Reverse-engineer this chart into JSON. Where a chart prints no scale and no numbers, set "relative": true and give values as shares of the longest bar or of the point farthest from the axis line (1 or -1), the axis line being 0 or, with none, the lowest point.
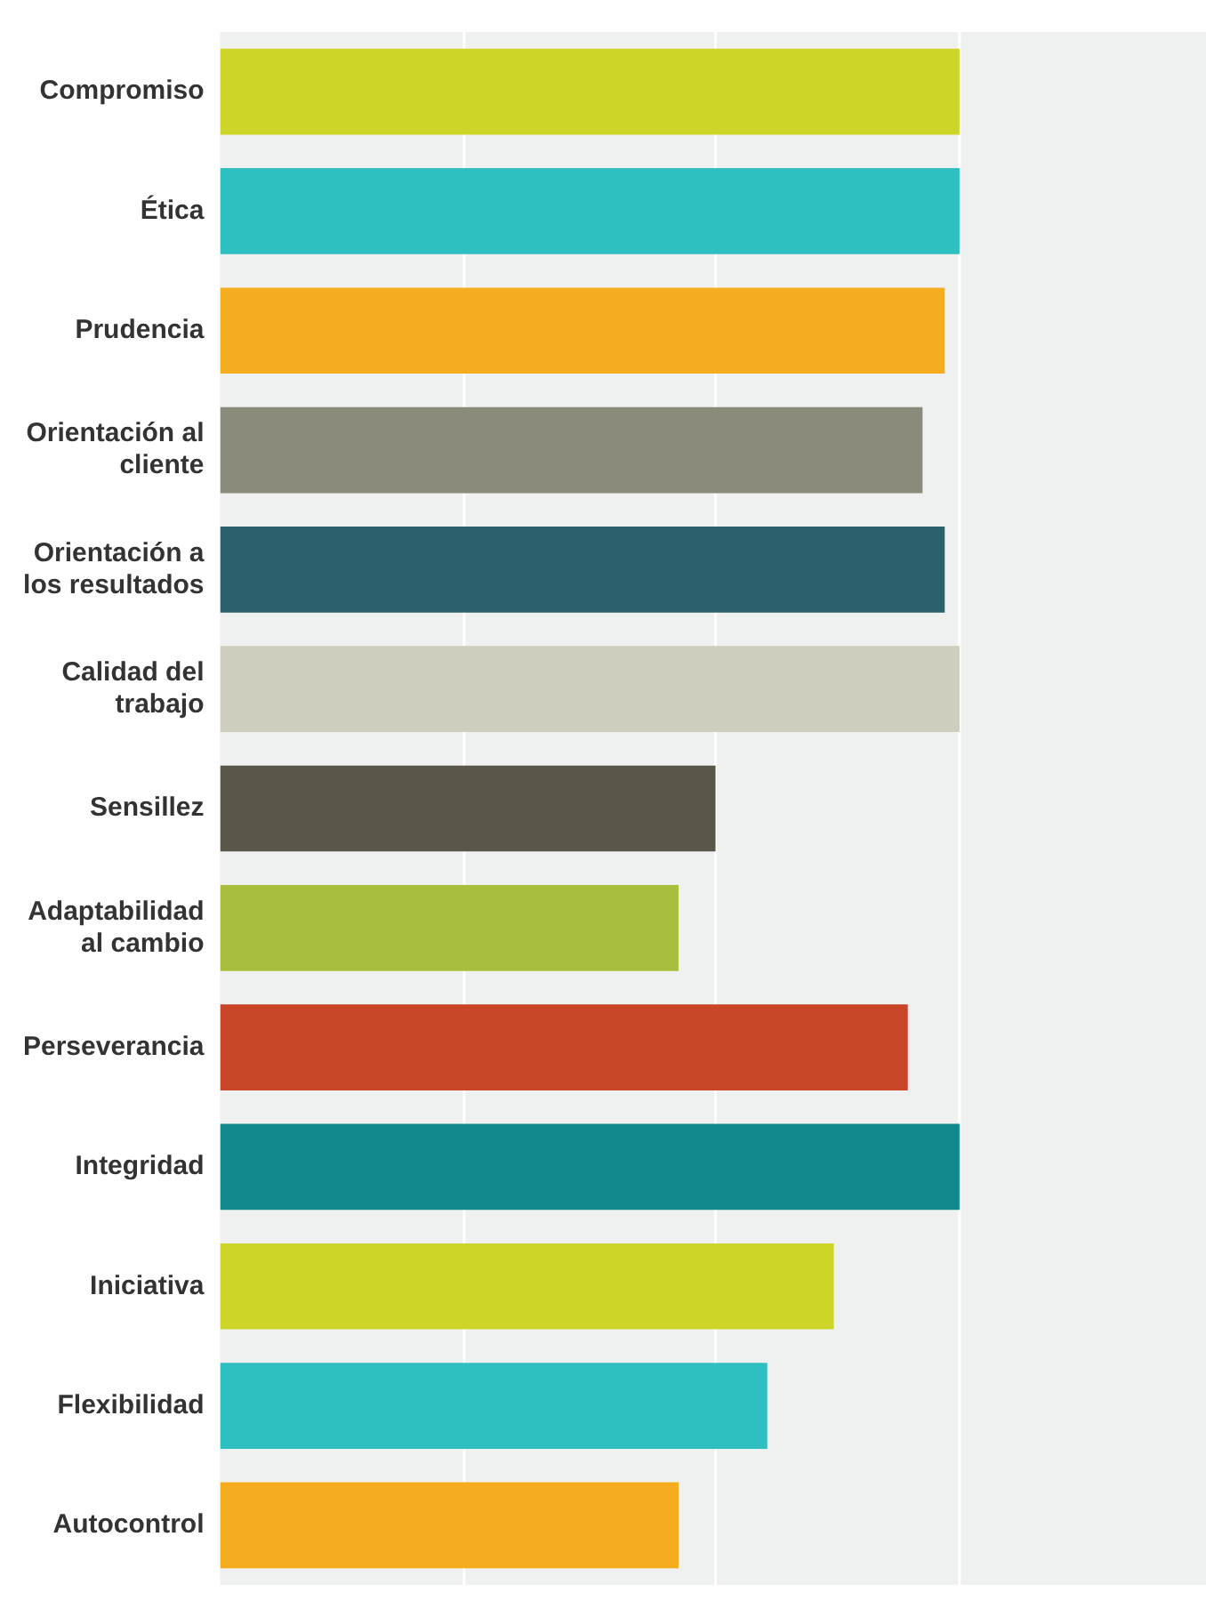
{
  "chart_data": {
    "type": "bar",
    "orientation": "horizontal",
    "relative": true,
    "ref_lines": [
      {
        "axis": "x",
        "value": 0.33,
        "color": "#ffffff"
      },
      {
        "axis": "x",
        "value": 0.67,
        "color": "#ffffff"
      },
      {
        "axis": "x",
        "value": 1,
        "color": "#ffffff"
      }
    ],
    "categories": [
      "Compromiso",
      "Ética",
      "Prudencia",
      "Orientación al cliente",
      "Orientación a los resultados",
      "Calidad del trabajo",
      "Sensillez",
      "Adaptabilidad al cambio",
      "Perseverancia",
      "Integridad",
      "Iniciativa",
      "Flexibilidad",
      "Autocontrol"
    ],
    "values": [
      1,
      1,
      0.98,
      0.95,
      0.98,
      1,
      0.67,
      0.62,
      0.93,
      1,
      0.83,
      0.74,
      0.62
    ],
    "colors": [
      "#cdd628",
      "#2ebfc0",
      "#f5ac1e",
      "#8a8b7a",
      "#2a616c",
      "#cfcdbd",
      "#5a574a",
      "#a8bf3d",
      "#c94527",
      "#108a8d",
      "#cdd628",
      "#2ebfc0",
      "#f5ac1e"
    ]
  }
}
